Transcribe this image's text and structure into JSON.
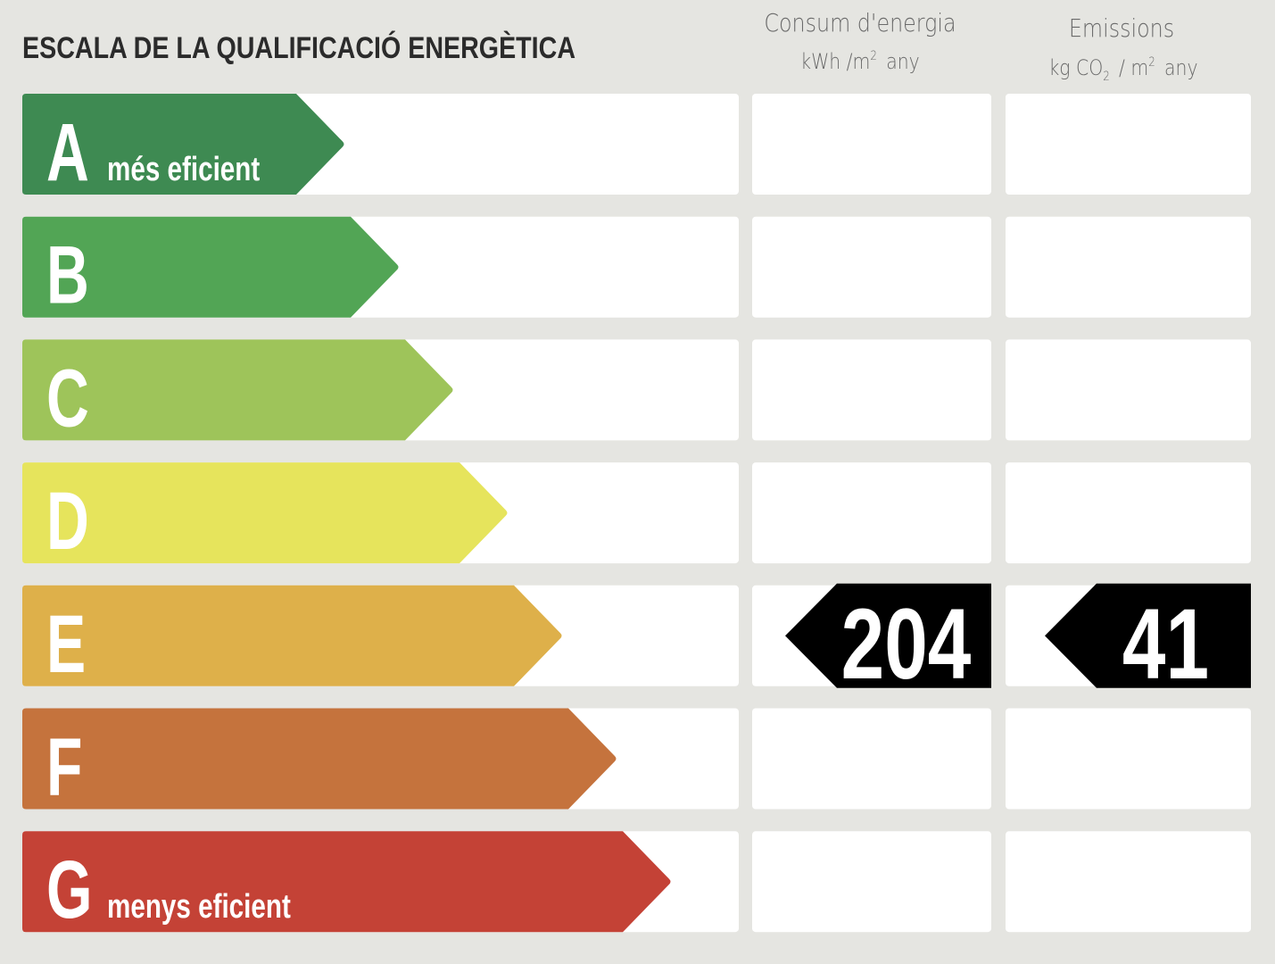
{
  "title": "ESCALA DE LA QUALIFICACIÓ ENERGÈTICA",
  "columns": [
    {
      "name": "Consum d'energia",
      "unit": [
        "kWh /m",
        "2",
        "any"
      ]
    },
    {
      "name": "Emissions",
      "unit": [
        "kg CO",
        "2",
        "/ m",
        "2",
        "any"
      ]
    }
  ],
  "rows": [
    {
      "letter": "A",
      "label": "més eficient",
      "color": "#3e8a52"
    },
    {
      "letter": "B",
      "color": "#52a555"
    },
    {
      "letter": "C",
      "color": "#9ec45a"
    },
    {
      "letter": "D",
      "color": "#e6e45c"
    },
    {
      "letter": "E",
      "color": "#deb04a",
      "energy": 204,
      "emissions": 41
    },
    {
      "letter": "F",
      "color": "#c5733d"
    },
    {
      "letter": "G",
      "label": "menys eficient",
      "color": "#c44236"
    }
  ]
}
